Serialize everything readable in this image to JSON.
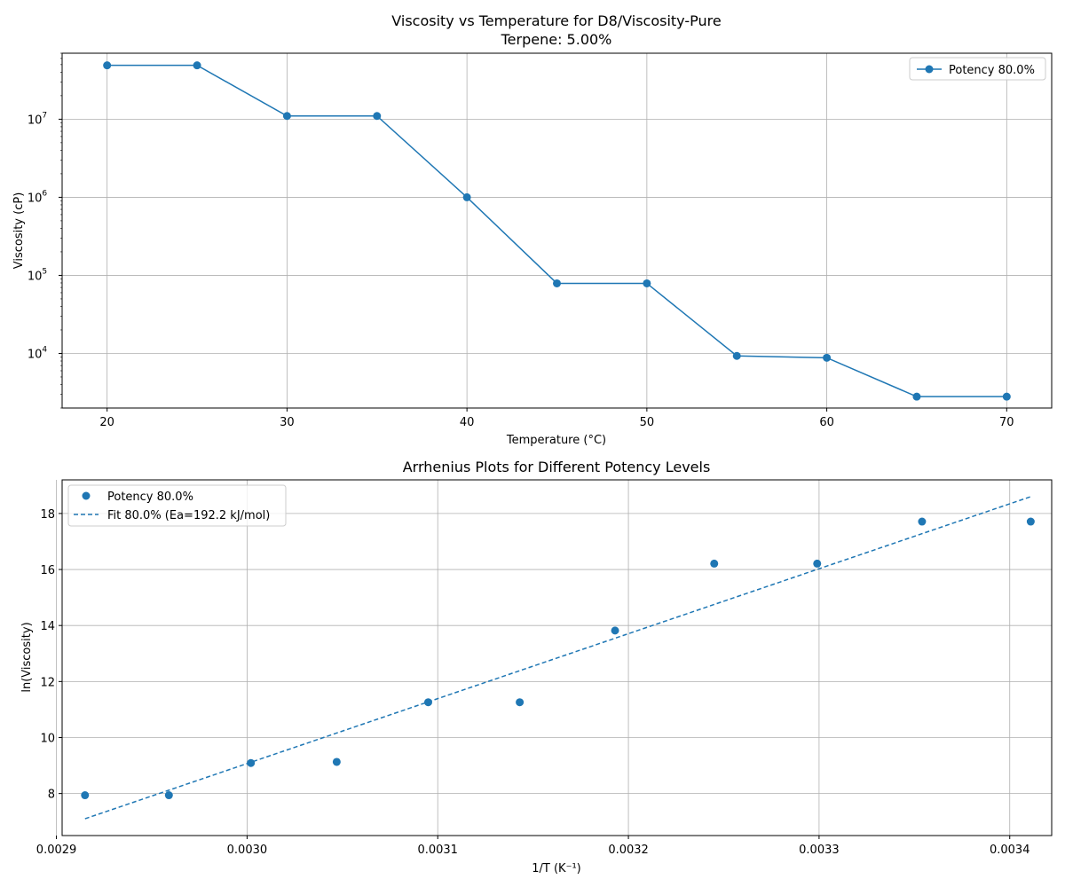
{
  "chart_data": [
    {
      "type": "line",
      "title": "Viscosity vs Temperature for D8/Viscosity-Pure",
      "subtitle": "Terpene: 5.00%",
      "xlabel": "Temperature (°C)",
      "ylabel": "Viscosity (cP)",
      "xlim": [
        17.5,
        72.5
      ],
      "ylim": [
        2000,
        70000000
      ],
      "yscale": "log",
      "grid": true,
      "legend_position": "top-right",
      "x_ticks": [
        "20",
        "30",
        "40",
        "50",
        "60",
        "70"
      ],
      "y_ticks": [
        "10",
        "10",
        "10",
        "10"
      ],
      "y_tick_exponents": [
        "7",
        "6",
        "5",
        "4"
      ],
      "series": [
        {
          "name": "Potency 80.0%",
          "color": "#1f77b4",
          "x": [
            20,
            25,
            30,
            35,
            40,
            45,
            50,
            55,
            60,
            65,
            70
          ],
          "y": [
            49000000,
            49000000,
            11000000,
            11000000,
            1000000,
            79000,
            79000,
            9300,
            8800,
            2800,
            2800
          ]
        }
      ]
    },
    {
      "type": "scatter",
      "title": "Arrhenius Plots for Different Potency Levels",
      "xlabel": "1/T (K⁻¹)",
      "ylabel": "ln(Viscosity)",
      "xlim": [
        0.002903,
        0.003422
      ],
      "ylim": [
        6.5,
        19.2
      ],
      "grid": true,
      "legend_position": "top-left",
      "x_ticks": [
        "0.0029",
        "0.0030",
        "0.0031",
        "0.0032",
        "0.0033",
        "0.0034"
      ],
      "y_ticks": [
        "8",
        "10",
        "12",
        "14",
        "16",
        "18"
      ],
      "series": [
        {
          "name": "Potency 80.0%",
          "color": "#1f77b4",
          "x": [
            0.002915,
            0.002959,
            0.003002,
            0.003047,
            0.003095,
            0.003143,
            0.003193,
            0.003245,
            0.003299,
            0.003354,
            0.003411
          ],
          "y": [
            7.94,
            7.94,
            9.09,
            9.13,
            11.26,
            11.26,
            13.82,
            16.21,
            16.21,
            17.71,
            17.71
          ]
        },
        {
          "name": "Fit 80.0% (Ea=192.2 kJ/mol)",
          "color": "#1f77b4",
          "style": "dashed",
          "x": [
            0.002915,
            0.003411
          ],
          "y": [
            7.1,
            18.6
          ]
        }
      ]
    }
  ]
}
